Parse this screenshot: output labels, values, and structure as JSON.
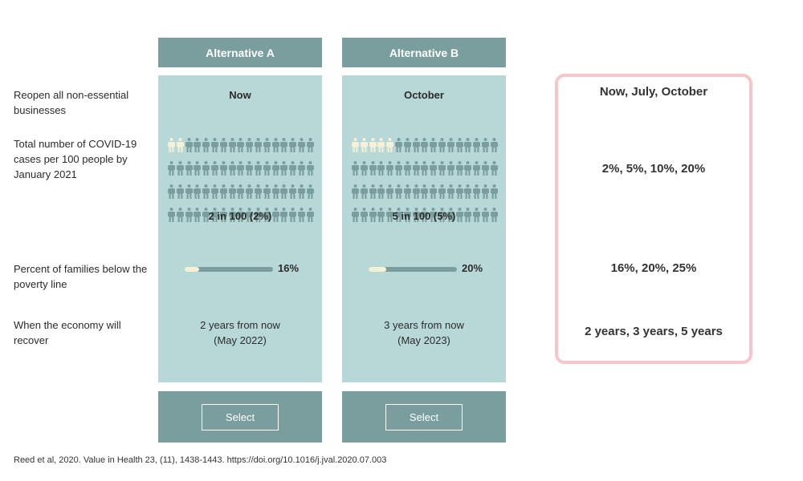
{
  "alternatives": [
    {
      "title": "Alternative A",
      "reopen": "Now",
      "cases_label": "2 in 100 (2%)",
      "cases_highlighted": 2,
      "poverty_pct": 16,
      "poverty_label": "16%",
      "recover_line1": "2 years from now",
      "recover_line2": "(May 2022)",
      "select": "Select"
    },
    {
      "title": "Alternative B",
      "reopen": "October",
      "cases_label": "5 in 100 (5%)",
      "cases_highlighted": 5,
      "poverty_pct": 20,
      "poverty_label": "20%",
      "recover_line1": "3 years from now",
      "recover_line2": "(May 2023)",
      "select": "Select"
    }
  ],
  "attributes": {
    "reopen": "Reopen all non-essential businesses",
    "cases": "Total number of COVID-19 cases per 100 people by January 2021",
    "poverty": "Percent of families below the poverty line",
    "recover": "When the economy will recover"
  },
  "levels": {
    "reopen": "Now, July, October",
    "cases": "2%, 5%, 10%, 20%",
    "poverty": "16%, 20%, 25%",
    "recover": "2 years, 3 years, 5 years"
  },
  "citation": "Reed et al, 2020. Value in Health 23, (11), 1438-1443. https://doi.org/10.1016/j.jval.2020.07.003",
  "colors": {
    "header": "#7a9e9e",
    "panel": "#b8d8d8",
    "highlight": "#f5f0d8",
    "levels_border": "#f6c6cb"
  }
}
